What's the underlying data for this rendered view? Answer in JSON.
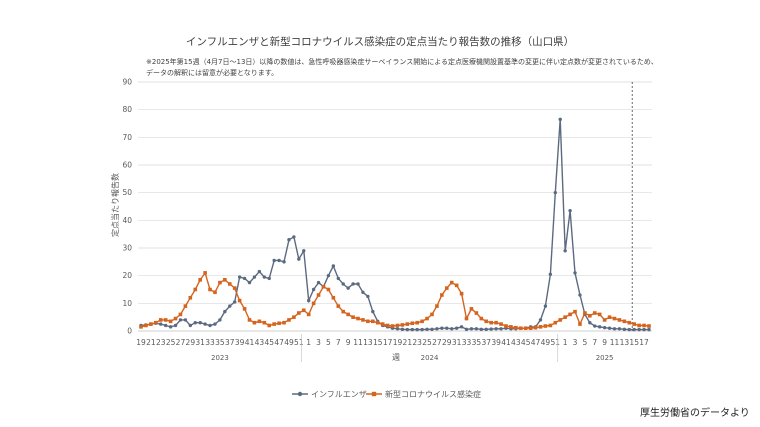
{
  "chart_data": {
    "type": "line",
    "title": "インフルエンザと新型コロナウイルス感染症の定点当たり報告数の推移（山口県）",
    "note_lines": [
      "※2025年第15週（4月7日～13日）以降の数値は、急性呼吸器感染症サーベイランス開始による定点医療機関設置基準の変更に伴い定点数が変更されているため、",
      "データの解釈には留意が必要となります。"
    ],
    "xlabel": "週",
    "ylabel": "定点当たり報告数",
    "ylim": [
      0,
      90
    ],
    "yticks": [
      0,
      10,
      20,
      30,
      40,
      50,
      60,
      70,
      80,
      90
    ],
    "grid": true,
    "legend_position": "bottom-center",
    "x_tick_labels": [
      "19",
      "21",
      "23",
      "25",
      "27",
      "29",
      "31",
      "33",
      "35",
      "37",
      "39",
      "41",
      "43",
      "45",
      "47",
      "49",
      "51",
      "1",
      "3",
      "5",
      "7",
      "9",
      "11",
      "13",
      "15",
      "17",
      "19",
      "21",
      "23",
      "25",
      "27",
      "29",
      "31",
      "33",
      "35",
      "37",
      "39",
      "41",
      "43",
      "45",
      "47",
      "49",
      "51",
      "1",
      "3",
      "5",
      "7",
      "9",
      "11",
      "13",
      "15",
      "17"
    ],
    "year_labels": [
      "2023",
      "2024",
      "2025"
    ],
    "reference_line_label": "2025年第15週",
    "colors": {
      "influenza": "#5b6a80",
      "covid": "#d4641e",
      "grid": "#d9d9d9",
      "axis": "#bfbfbf",
      "reference": "#404040"
    },
    "series": [
      {
        "name": "インフルエンザ",
        "values": [
          2.0,
          2.2,
          2.5,
          2.8,
          2.5,
          2.0,
          1.5,
          2.0,
          4.0,
          4.0,
          2.0,
          3.0,
          3.0,
          2.5,
          2.0,
          2.5,
          4.0,
          7.0,
          9.0,
          10.5,
          19.5,
          19.0,
          17.5,
          19.5,
          21.5,
          19.5,
          19.0,
          25.5,
          25.5,
          25.0,
          33.0,
          34.0,
          26.0,
          29.0,
          11.0,
          15.0,
          17.5,
          16.0,
          20.0,
          23.5,
          19.0,
          17.0,
          15.5,
          17.0,
          17.0,
          14.0,
          12.5,
          7.0,
          3.5,
          2.0,
          1.5,
          1.0,
          0.8,
          0.6,
          0.5,
          0.5,
          0.5,
          0.5,
          0.6,
          0.6,
          0.8,
          1.0,
          1.0,
          0.8,
          1.0,
          1.5,
          0.6,
          0.8,
          0.8,
          0.6,
          0.6,
          0.7,
          0.8,
          0.8,
          1.0,
          0.8,
          0.8,
          1.0,
          1.0,
          1.5,
          1.5,
          4.0,
          9.0,
          20.5,
          50.0,
          76.5,
          29.0,
          43.5,
          21.0,
          13.0,
          6.0,
          3.0,
          1.8,
          1.5,
          1.2,
          1.0,
          0.8,
          0.8,
          0.6,
          0.5,
          0.5,
          0.5,
          0.5,
          0.5
        ]
      },
      {
        "name": "新型コロナウイルス感染症",
        "values": [
          1.5,
          2.0,
          2.5,
          3.0,
          4.0,
          4.0,
          3.5,
          4.5,
          6.0,
          9.0,
          12.0,
          15.0,
          18.5,
          21.0,
          15.0,
          14.0,
          17.5,
          18.5,
          17.0,
          15.5,
          11.0,
          8.0,
          4.0,
          3.0,
          3.5,
          3.0,
          2.0,
          2.5,
          2.8,
          3.0,
          4.0,
          5.0,
          6.5,
          7.5,
          6.0,
          10.0,
          13.0,
          16.0,
          15.0,
          12.0,
          9.0,
          7.0,
          6.0,
          5.0,
          4.5,
          4.0,
          3.5,
          3.5,
          3.0,
          2.5,
          2.0,
          1.8,
          2.0,
          2.2,
          2.5,
          2.8,
          3.0,
          3.5,
          4.5,
          6.0,
          9.0,
          13.0,
          15.5,
          17.5,
          16.5,
          13.5,
          4.5,
          8.0,
          6.5,
          4.5,
          3.5,
          3.0,
          3.0,
          2.5,
          1.8,
          1.5,
          1.2,
          1.0,
          1.0,
          1.0,
          1.2,
          1.5,
          1.8,
          2.0,
          3.0,
          4.0,
          5.0,
          6.0,
          7.0,
          2.5,
          6.5,
          5.5,
          6.5,
          6.0,
          4.0,
          5.0,
          4.5,
          4.0,
          3.5,
          3.0,
          2.5,
          2.0,
          2.0,
          1.8
        ]
      }
    ],
    "credit": "厚生労働省のデータより"
  }
}
